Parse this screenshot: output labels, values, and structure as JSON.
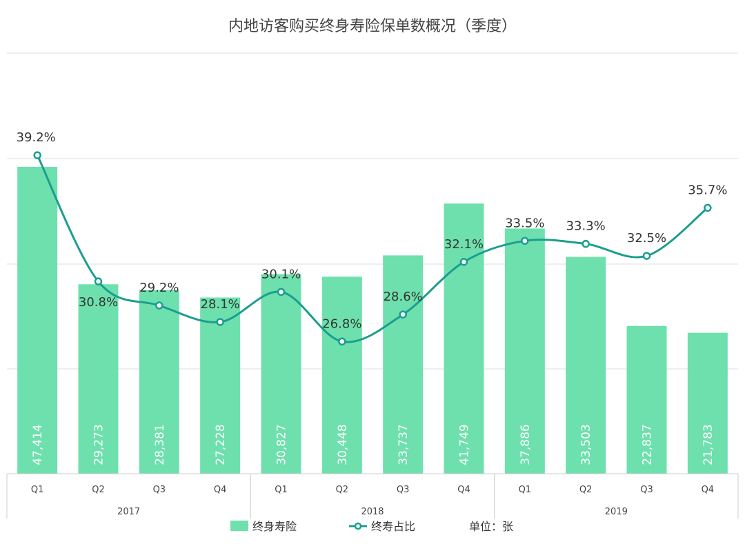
{
  "chart_data": {
    "type": "bar",
    "title": "内地访客购买终身寿险保单数概况（季度）",
    "categories": [
      "Q1",
      "Q2",
      "Q3",
      "Q4",
      "Q1",
      "Q2",
      "Q3",
      "Q4",
      "Q1",
      "Q2",
      "Q3",
      "Q4"
    ],
    "groups": [
      {
        "label": "2017",
        "count": 4
      },
      {
        "label": "2018",
        "count": 4
      },
      {
        "label": "2019",
        "count": 4
      }
    ],
    "series": [
      {
        "name": "终身寿险",
        "type": "bar",
        "color": "#6ee0ad",
        "values": [
          47414,
          29273,
          28381,
          27228,
          30827,
          30448,
          33737,
          41749,
          37886,
          33503,
          22837,
          21783
        ],
        "labels": [
          "47,414",
          "29,273",
          "28,381",
          "27,228",
          "30,827",
          "30,448",
          "33,737",
          "41,749",
          "37,886",
          "33,503",
          "22,837",
          "21,783"
        ]
      },
      {
        "name": "终寿占比",
        "type": "line",
        "color": "#1a9e8e",
        "values": [
          39.2,
          30.8,
          29.2,
          28.1,
          30.1,
          26.8,
          28.6,
          32.1,
          33.5,
          33.3,
          32.5,
          35.7
        ],
        "labels": [
          "39.2%",
          "30.8%",
          "29.2%",
          "28.1%",
          "30.1%",
          "26.8%",
          "28.6%",
          "32.1%",
          "33.5%",
          "33.3%",
          "32.5%",
          "35.7%"
        ]
      }
    ],
    "unit_note": "单位：张",
    "bar_ylim": [
      0,
      65000
    ],
    "line_ylim": [
      18,
      46
    ],
    "grid": true,
    "legend_position": "bottom"
  }
}
